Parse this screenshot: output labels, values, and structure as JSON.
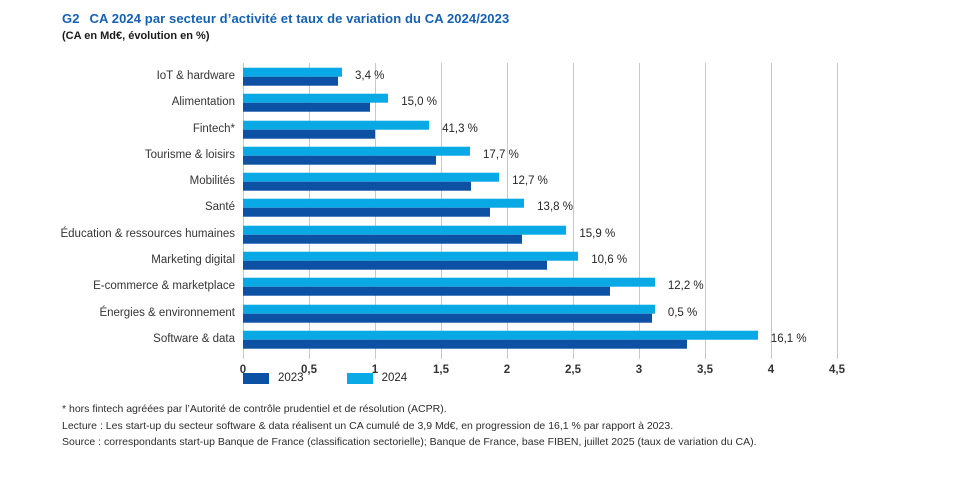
{
  "header": {
    "tag": "G2",
    "title": "CA 2024 par secteur d’activité et taux de variation du CA 2024/2023",
    "subtitle": "(CA en Md€, évolution en %)"
  },
  "chart_data": {
    "type": "bar",
    "orientation": "horizontal",
    "title": "CA 2024 par secteur d’activité et taux de variation du CA 2024/2023",
    "subtitle": "(CA en Md€, évolution en %)",
    "xlabel": "CA en Md€",
    "xlim": [
      0,
      4.5
    ],
    "grid": "vertical",
    "categories": [
      "IoT & hardware",
      "Alimentation",
      "Fintech*",
      "Tourisme & loisirs",
      "Mobilités",
      "Santé",
      "Éducation & ressources humaines",
      "Marketing digital",
      "E-commerce & marketplace",
      "Énergies & environnement",
      "Software & data"
    ],
    "series": [
      {
        "name": "2023",
        "color": "#0d51a4",
        "values": [
          0.72,
          0.96,
          1.0,
          1.46,
          1.73,
          1.87,
          2.11,
          2.3,
          2.78,
          3.1,
          3.36
        ]
      },
      {
        "name": "2024",
        "color": "#09a9e6",
        "values": [
          0.75,
          1.1,
          1.41,
          1.72,
          1.94,
          2.13,
          2.45,
          2.54,
          3.12,
          3.12,
          3.9
        ]
      }
    ],
    "variation_labels": [
      "3,4 %",
      "15,0 %",
      "41,3 %",
      "17,7 %",
      "12,7 %",
      "13,8 %",
      "15,9 %",
      "10,6 %",
      "12,2 %",
      "0,5 %",
      "16,1 %"
    ],
    "x_ticks": [
      "0",
      "0,5",
      "1",
      "1,5",
      "2",
      "2,5",
      "3",
      "3,5",
      "4",
      "4,5"
    ],
    "legend_position": "bottom-left",
    "legend": [
      {
        "label": "2023",
        "color": "#0d51a4"
      },
      {
        "label": "2024",
        "color": "#09a9e6"
      }
    ]
  },
  "footnotes": [
    "*  hors fintech agréées par l’Autorité de contrôle prudentiel et de résolution (ACPR).",
    "Lecture : Les start-up du secteur software & data réalisent un CA cumulé de 3,9 Md€, en progression de 16,1 % par rapport à 2023.",
    "Source : correspondants start-up Banque de France (classification sectorielle); Banque de France, base FIBEN, juillet 2025 (taux de variation du CA)."
  ]
}
